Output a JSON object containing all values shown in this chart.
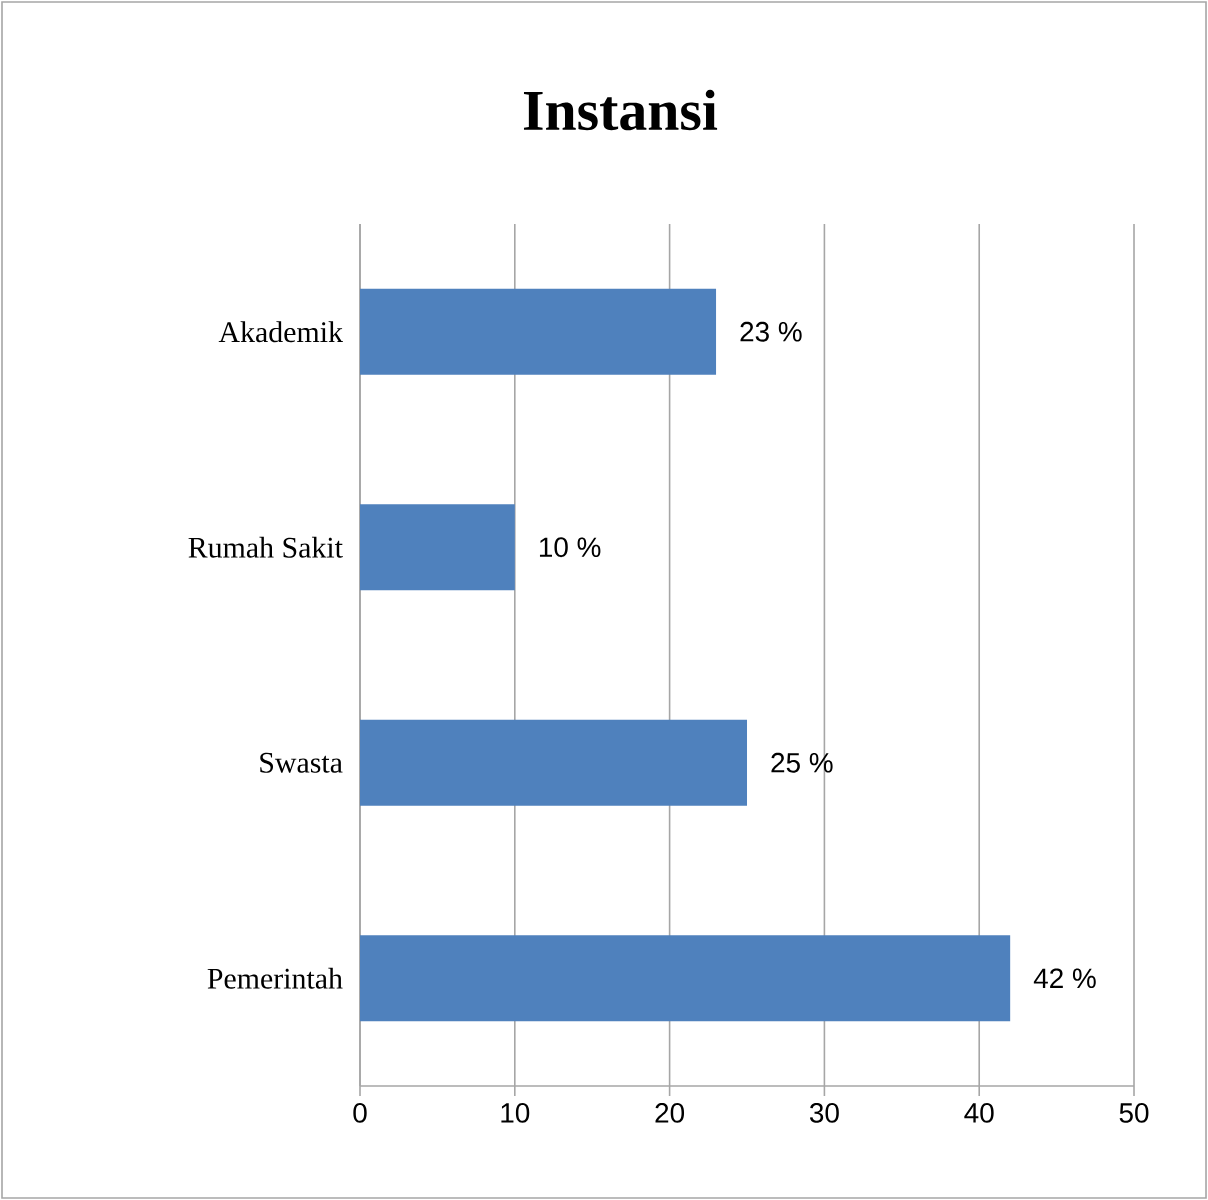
{
  "chart_data": {
    "type": "bar",
    "orientation": "horizontal",
    "title": "Instansi",
    "categories": [
      "Akademik",
      "Rumah Sakit",
      "Swasta",
      "Pemerintah"
    ],
    "values": [
      23,
      10,
      25,
      42
    ],
    "value_labels": [
      "23 %",
      "10 %",
      "25 %",
      "42 %"
    ],
    "color": "#4f81bd",
    "xlim": [
      0,
      50
    ],
    "xticks": [
      0,
      10,
      20,
      30,
      40,
      50
    ],
    "grid": "x"
  }
}
